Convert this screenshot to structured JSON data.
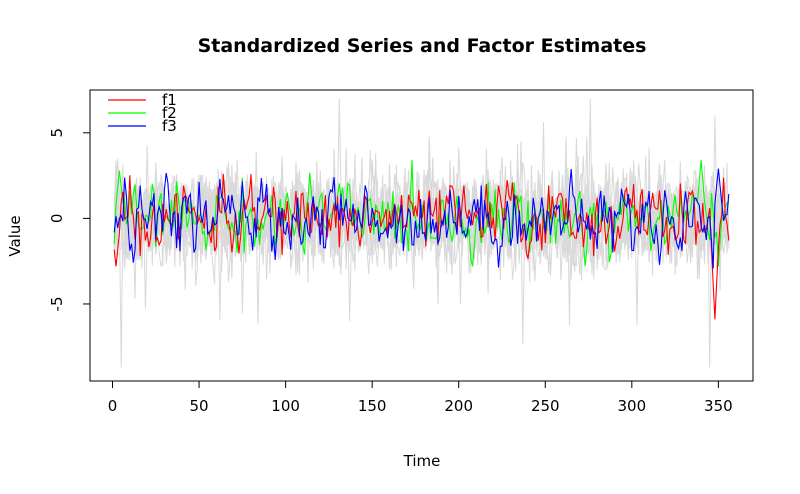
{
  "chart_data": {
    "type": "line",
    "title": "Standardized Series and Factor Estimates",
    "xlabel": "Time",
    "ylabel": "Value",
    "xlim": [
      -13,
      370
    ],
    "ylim": [
      -9.5,
      7.5
    ],
    "x_ticks": [
      0,
      50,
      100,
      150,
      200,
      250,
      300,
      350
    ],
    "y_ticks": [
      -5,
      0,
      5
    ],
    "x_tick_labels": [
      "0",
      "50",
      "100",
      "150",
      "200",
      "250",
      "300",
      "350"
    ],
    "y_tick_labels": [
      "-5",
      "0",
      "5"
    ],
    "grid": false,
    "legend_position": "top-left",
    "n_points": 356,
    "background_series": {
      "color": "#d9d9d9",
      "count": 12,
      "range_observed": [
        -8.7,
        7.0
      ],
      "notable_extremes": [
        {
          "x": 5,
          "y": -8.7
        },
        {
          "x": 131,
          "y": 7.0
        },
        {
          "x": 137,
          "y": -6.0
        },
        {
          "x": 345,
          "y": -8.7
        },
        {
          "x": 348,
          "y": 6.0
        }
      ]
    },
    "series": [
      {
        "name": "f1",
        "color": "#ff0000",
        "range_observed": [
          -5.9,
          2.6
        ],
        "notable_points": [
          {
            "x": 348,
            "y": -5.9
          },
          {
            "x": 2,
            "y": -2.8
          }
        ]
      },
      {
        "name": "f2",
        "color": "#00ff00",
        "range_observed": [
          -2.8,
          3.4
        ],
        "notable_points": [
          {
            "x": 4,
            "y": 2.8
          },
          {
            "x": 340,
            "y": 3.4
          }
        ]
      },
      {
        "name": "f3",
        "color": "#0000ff",
        "range_observed": [
          -4.5,
          2.9
        ],
        "notable_points": [
          {
            "x": 348,
            "y": -4.5
          },
          {
            "x": 350,
            "y": 2.9
          }
        ]
      }
    ]
  }
}
